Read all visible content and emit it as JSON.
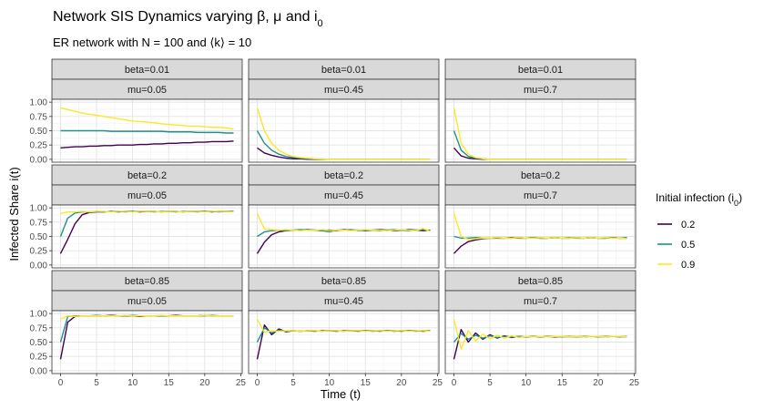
{
  "chart_data": {
    "type": "line",
    "title": "Network SIS Dynamics varying β, μ and i",
    "title_sub": "0",
    "subtitle": "ER network with N = 100 and ⟨k⟩ = 10",
    "xlabel": "Time (t)",
    "ylabel": "Infected Share i(t)",
    "xlim": [
      -1.2,
      25.2
    ],
    "ylim": [
      -0.05,
      1.05
    ],
    "x_ticks": [
      0,
      5,
      10,
      15,
      20,
      25
    ],
    "x_tick_labels": [
      "0",
      "5",
      "10",
      "15",
      "20",
      "25"
    ],
    "y_ticks": [
      0,
      0.25,
      0.5,
      0.75,
      1
    ],
    "y_tick_labels": [
      "0.00",
      "0.25",
      "0.50",
      "0.75",
      "1.00"
    ],
    "grid": true,
    "legend": {
      "title": "Initial infection (i",
      "title_sub": "0",
      "title_end": ")",
      "position": "right",
      "entries": [
        "0.2",
        "0.5",
        "0.9"
      ]
    },
    "colors": [
      "#440154",
      "#21908C",
      "#FDE725"
    ],
    "x": [
      0,
      1,
      2,
      3,
      4,
      5,
      6,
      7,
      8,
      9,
      10,
      11,
      12,
      13,
      14,
      15,
      16,
      17,
      18,
      19,
      20,
      21,
      22,
      23,
      24
    ],
    "panels": [
      {
        "beta_label": "beta=0.01",
        "mu_label": "mu=0.05",
        "series": [
          {
            "values": [
              0.2,
              0.21,
              0.22,
              0.22,
              0.23,
              0.23,
              0.24,
              0.24,
              0.25,
              0.25,
              0.25,
              0.26,
              0.26,
              0.27,
              0.27,
              0.28,
              0.28,
              0.29,
              0.29,
              0.3,
              0.3,
              0.31,
              0.31,
              0.31,
              0.32
            ]
          },
          {
            "values": [
              0.5,
              0.5,
              0.5,
              0.5,
              0.5,
              0.5,
              0.5,
              0.49,
              0.49,
              0.49,
              0.49,
              0.49,
              0.49,
              0.49,
              0.49,
              0.48,
              0.48,
              0.48,
              0.48,
              0.47,
              0.47,
              0.47,
              0.47,
              0.46,
              0.46
            ]
          },
          {
            "values": [
              0.9,
              0.87,
              0.84,
              0.81,
              0.79,
              0.77,
              0.75,
              0.73,
              0.71,
              0.69,
              0.67,
              0.66,
              0.65,
              0.64,
              0.62,
              0.61,
              0.6,
              0.59,
              0.58,
              0.58,
              0.57,
              0.56,
              0.56,
              0.55,
              0.53
            ]
          }
        ]
      },
      {
        "beta_label": "beta=0.01",
        "mu_label": "mu=0.45",
        "series": [
          {
            "values": [
              0.2,
              0.11,
              0.07,
              0.04,
              0.02,
              0.01,
              0.01,
              0.0,
              0,
              0,
              0,
              0,
              0,
              0,
              0,
              0,
              0,
              0,
              0,
              0,
              0,
              0,
              0,
              0,
              0
            ]
          },
          {
            "values": [
              0.5,
              0.28,
              0.16,
              0.09,
              0.05,
              0.03,
              0.02,
              0.01,
              0.01,
              0,
              0,
              0,
              0,
              0,
              0,
              0,
              0,
              0,
              0,
              0,
              0,
              0,
              0,
              0,
              0
            ]
          },
          {
            "values": [
              0.9,
              0.5,
              0.28,
              0.16,
              0.09,
              0.05,
              0.03,
              0.02,
              0.01,
              0.01,
              0,
              0,
              0,
              0,
              0,
              0,
              0,
              0,
              0,
              0,
              0,
              0,
              0,
              0,
              0
            ]
          }
        ]
      },
      {
        "beta_label": "beta=0.01",
        "mu_label": "mu=0.7",
        "series": [
          {
            "values": [
              0.2,
              0.06,
              0.02,
              0.01,
              0,
              0,
              0,
              0,
              0,
              0,
              0,
              0,
              0,
              0,
              0,
              0,
              0,
              0,
              0,
              0,
              0,
              0,
              0,
              0,
              0
            ]
          },
          {
            "values": [
              0.5,
              0.16,
              0.05,
              0.02,
              0.01,
              0,
              0,
              0,
              0,
              0,
              0,
              0,
              0,
              0,
              0,
              0,
              0,
              0,
              0,
              0,
              0,
              0,
              0,
              0,
              0
            ]
          },
          {
            "values": [
              0.9,
              0.28,
              0.09,
              0.03,
              0.01,
              0,
              0,
              0,
              0,
              0,
              0,
              0,
              0,
              0,
              0,
              0,
              0,
              0,
              0,
              0,
              0,
              0,
              0,
              0,
              0
            ]
          }
        ]
      },
      {
        "beta_label": "beta=0.2",
        "mu_label": "mu=0.05",
        "series": [
          {
            "values": [
              0.2,
              0.45,
              0.72,
              0.88,
              0.92,
              0.93,
              0.93,
              0.94,
              0.93,
              0.94,
              0.94,
              0.93,
              0.94,
              0.94,
              0.93,
              0.94,
              0.94,
              0.93,
              0.94,
              0.94,
              0.94,
              0.93,
              0.94,
              0.94,
              0.94
            ]
          },
          {
            "values": [
              0.5,
              0.82,
              0.91,
              0.93,
              0.93,
              0.94,
              0.93,
              0.94,
              0.94,
              0.93,
              0.94,
              0.94,
              0.94,
              0.93,
              0.94,
              0.94,
              0.93,
              0.94,
              0.94,
              0.93,
              0.94,
              0.94,
              0.93,
              0.94,
              0.94
            ]
          },
          {
            "values": [
              0.9,
              0.93,
              0.93,
              0.94,
              0.93,
              0.94,
              0.94,
              0.93,
              0.94,
              0.94,
              0.93,
              0.94,
              0.94,
              0.94,
              0.93,
              0.94,
              0.94,
              0.93,
              0.94,
              0.94,
              0.93,
              0.94,
              0.94,
              0.94,
              0.93
            ]
          }
        ]
      },
      {
        "beta_label": "beta=0.2",
        "mu_label": "mu=0.45",
        "series": [
          {
            "values": [
              0.2,
              0.4,
              0.53,
              0.58,
              0.6,
              0.61,
              0.61,
              0.62,
              0.61,
              0.6,
              0.61,
              0.6,
              0.62,
              0.61,
              0.61,
              0.6,
              0.61,
              0.62,
              0.61,
              0.6,
              0.61,
              0.62,
              0.61,
              0.6,
              0.61
            ]
          },
          {
            "values": [
              0.5,
              0.58,
              0.6,
              0.61,
              0.6,
              0.61,
              0.62,
              0.61,
              0.61,
              0.6,
              0.58,
              0.61,
              0.61,
              0.62,
              0.6,
              0.61,
              0.61,
              0.6,
              0.61,
              0.62,
              0.61,
              0.6,
              0.61,
              0.62,
              0.6
            ]
          },
          {
            "values": [
              0.9,
              0.63,
              0.62,
              0.61,
              0.62,
              0.61,
              0.6,
              0.61,
              0.61,
              0.62,
              0.6,
              0.61,
              0.61,
              0.6,
              0.61,
              0.62,
              0.61,
              0.61,
              0.6,
              0.61,
              0.62,
              0.61,
              0.6,
              0.64,
              0.59
            ]
          }
        ]
      },
      {
        "beta_label": "beta=0.2",
        "mu_label": "mu=0.7",
        "series": [
          {
            "values": [
              0.2,
              0.33,
              0.41,
              0.44,
              0.46,
              0.47,
              0.47,
              0.47,
              0.48,
              0.47,
              0.47,
              0.48,
              0.47,
              0.47,
              0.48,
              0.47,
              0.47,
              0.48,
              0.47,
              0.48,
              0.47,
              0.47,
              0.48,
              0.47,
              0.47
            ]
          },
          {
            "values": [
              0.5,
              0.47,
              0.47,
              0.48,
              0.47,
              0.47,
              0.48,
              0.47,
              0.47,
              0.48,
              0.47,
              0.48,
              0.47,
              0.47,
              0.48,
              0.47,
              0.48,
              0.47,
              0.47,
              0.48,
              0.47,
              0.47,
              0.48,
              0.47,
              0.48
            ]
          },
          {
            "values": [
              0.9,
              0.5,
              0.45,
              0.46,
              0.47,
              0.47,
              0.48,
              0.47,
              0.47,
              0.48,
              0.47,
              0.47,
              0.48,
              0.47,
              0.48,
              0.47,
              0.47,
              0.48,
              0.47,
              0.48,
              0.47,
              0.48,
              0.47,
              0.47,
              0.46
            ]
          }
        ]
      },
      {
        "beta_label": "beta=0.85",
        "mu_label": "mu=0.05",
        "series": [
          {
            "values": [
              0.2,
              0.85,
              0.95,
              0.96,
              0.96,
              0.96,
              0.96,
              0.97,
              0.96,
              0.96,
              0.96,
              0.95,
              0.96,
              0.96,
              0.96,
              0.96,
              0.97,
              0.96,
              0.96,
              0.96,
              0.97,
              0.96,
              0.96,
              0.96,
              0.96
            ]
          },
          {
            "values": [
              0.5,
              0.95,
              0.96,
              0.96,
              0.96,
              0.97,
              0.96,
              0.96,
              0.96,
              0.96,
              0.97,
              0.96,
              0.96,
              0.96,
              0.96,
              0.96,
              0.96,
              0.96,
              0.96,
              0.96,
              0.96,
              0.97,
              0.96,
              0.96,
              0.96
            ]
          },
          {
            "values": [
              0.9,
              0.96,
              0.95,
              0.96,
              0.96,
              0.96,
              0.96,
              0.96,
              0.96,
              0.97,
              0.96,
              0.96,
              0.96,
              0.96,
              0.97,
              0.96,
              0.96,
              0.96,
              0.96,
              0.96,
              0.97,
              0.96,
              0.96,
              0.96,
              0.96
            ]
          }
        ]
      },
      {
        "beta_label": "beta=0.85",
        "mu_label": "mu=0.45",
        "series": [
          {
            "values": [
              0.2,
              0.8,
              0.63,
              0.73,
              0.68,
              0.7,
              0.69,
              0.7,
              0.69,
              0.7,
              0.7,
              0.69,
              0.7,
              0.7,
              0.69,
              0.7,
              0.7,
              0.69,
              0.7,
              0.7,
              0.69,
              0.7,
              0.7,
              0.69,
              0.7
            ]
          },
          {
            "values": [
              0.5,
              0.75,
              0.66,
              0.71,
              0.69,
              0.7,
              0.69,
              0.7,
              0.7,
              0.69,
              0.7,
              0.7,
              0.69,
              0.7,
              0.7,
              0.7,
              0.69,
              0.7,
              0.7,
              0.69,
              0.7,
              0.7,
              0.69,
              0.7,
              0.7
            ]
          },
          {
            "values": [
              0.9,
              0.67,
              0.7,
              0.69,
              0.7,
              0.7,
              0.69,
              0.7,
              0.7,
              0.69,
              0.7,
              0.7,
              0.69,
              0.7,
              0.7,
              0.69,
              0.7,
              0.7,
              0.69,
              0.7,
              0.7,
              0.69,
              0.7,
              0.7,
              0.69
            ]
          }
        ]
      },
      {
        "beta_label": "beta=0.85",
        "mu_label": "mu=0.7",
        "series": [
          {
            "values": [
              0.2,
              0.72,
              0.5,
              0.66,
              0.55,
              0.63,
              0.57,
              0.61,
              0.58,
              0.6,
              0.59,
              0.6,
              0.59,
              0.6,
              0.59,
              0.6,
              0.59,
              0.6,
              0.59,
              0.6,
              0.6,
              0.59,
              0.6,
              0.6,
              0.59
            ]
          },
          {
            "values": [
              0.5,
              0.65,
              0.55,
              0.62,
              0.57,
              0.61,
              0.58,
              0.6,
              0.59,
              0.6,
              0.59,
              0.6,
              0.59,
              0.6,
              0.6,
              0.59,
              0.6,
              0.59,
              0.6,
              0.6,
              0.59,
              0.6,
              0.6,
              0.59,
              0.6
            ]
          },
          {
            "values": [
              0.9,
              0.38,
              0.7,
              0.52,
              0.64,
              0.56,
              0.62,
              0.57,
              0.61,
              0.58,
              0.6,
              0.59,
              0.6,
              0.59,
              0.6,
              0.6,
              0.59,
              0.6,
              0.59,
              0.6,
              0.6,
              0.59,
              0.6,
              0.6,
              0.59
            ]
          }
        ]
      }
    ]
  }
}
